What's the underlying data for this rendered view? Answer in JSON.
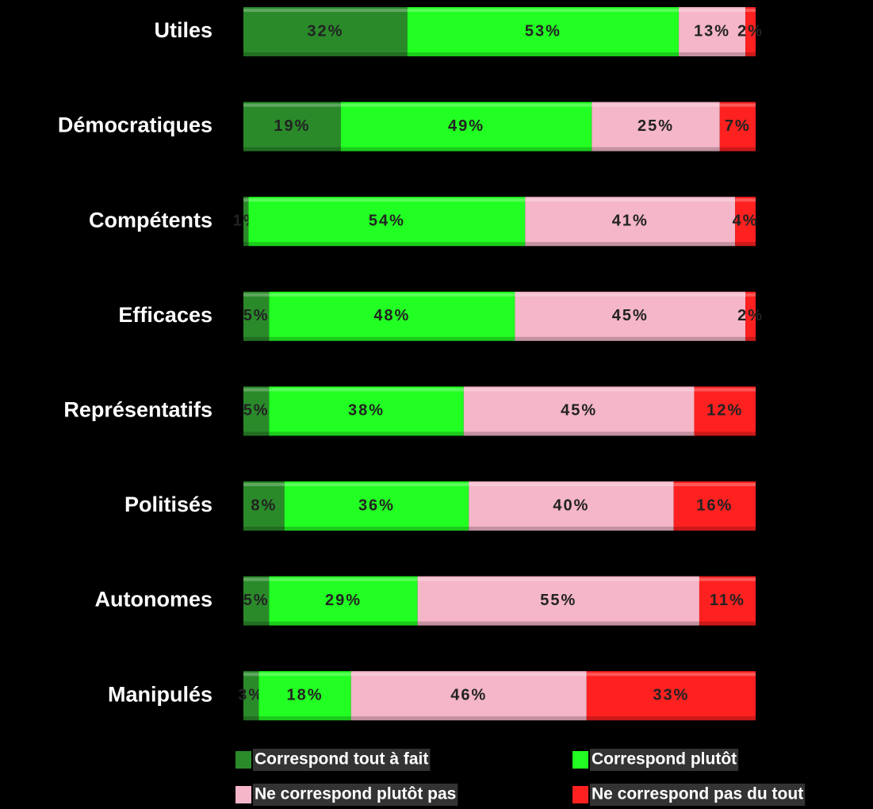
{
  "chart_data": {
    "type": "stacked-barh",
    "categories": [
      "Utiles",
      "Démocratiques",
      "Compétents",
      "Efficaces",
      "Représentatifs",
      "Politisés",
      "Autonomes",
      "Manipulés"
    ],
    "xlim": [
      0,
      100
    ],
    "series": [
      {
        "name": "Correspond tout à fait",
        "color": "#2a8a2a",
        "values": [
          32,
          19,
          1,
          5,
          5,
          8,
          5,
          3
        ],
        "value_labels": [
          "32%",
          "19%",
          "1%",
          "5%",
          "5%",
          "8%",
          "5%",
          "3%"
        ]
      },
      {
        "name": "Correspond plutôt",
        "color": "#22ff22",
        "values": [
          53,
          49,
          54,
          48,
          38,
          36,
          29,
          18
        ],
        "value_labels": [
          "53%",
          "49%",
          "54%",
          "48%",
          "38%",
          "36%",
          "29%",
          "18%"
        ]
      },
      {
        "name": "Ne correspond plutôt pas",
        "color": "#f4b6c8",
        "values": [
          13,
          25,
          41,
          45,
          45,
          40,
          55,
          46
        ],
        "value_labels": [
          "13%",
          "25%",
          "41%",
          "45%",
          "45%",
          "40%",
          "55%",
          "46%"
        ]
      },
      {
        "name": "Ne correspond pas du tout",
        "color": "#ff2020",
        "values": [
          2,
          7,
          4,
          2,
          12,
          16,
          11,
          33
        ],
        "value_labels": [
          "2%",
          "7%",
          "4%",
          "2%",
          "12%",
          "16%",
          "11%",
          "33%"
        ]
      }
    ],
    "legend": "bottom"
  }
}
